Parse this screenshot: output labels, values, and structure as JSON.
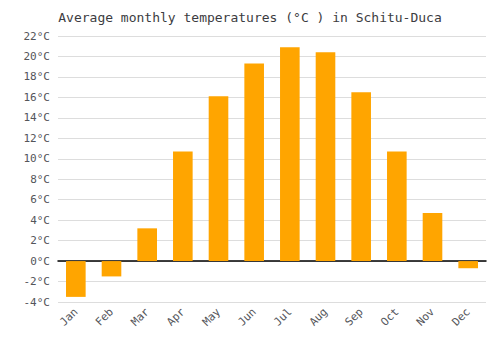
{
  "chart_data": {
    "type": "bar",
    "title": "Average monthly temperatures (°C ) in Schitu-Duca",
    "categories": [
      "Jan",
      "Feb",
      "Mar",
      "Apr",
      "May",
      "Jun",
      "Jul",
      "Aug",
      "Sep",
      "Oct",
      "Nov",
      "Dec"
    ],
    "values": [
      -3.5,
      -1.5,
      3.2,
      10.7,
      16.1,
      19.3,
      20.9,
      20.4,
      16.5,
      10.7,
      4.7,
      -0.7
    ],
    "color": "#FFA500",
    "ylim": [
      -4,
      22
    ],
    "yticks": [
      {
        "value": -4,
        "label": "-4°C"
      },
      {
        "value": -2,
        "label": "-2°C"
      },
      {
        "value": 0,
        "label": "0°C"
      },
      {
        "value": 2,
        "label": "2°C"
      },
      {
        "value": 4,
        "label": "4°C"
      },
      {
        "value": 6,
        "label": "6°C"
      },
      {
        "value": 8,
        "label": "8°C"
      },
      {
        "value": 10,
        "label": "10°C"
      },
      {
        "value": 12,
        "label": "12°C"
      },
      {
        "value": 14,
        "label": "14°C"
      },
      {
        "value": 16,
        "label": "16°C"
      },
      {
        "value": 18,
        "label": "18°C"
      },
      {
        "value": 20,
        "label": "20°C"
      },
      {
        "value": 22,
        "label": "22°C"
      }
    ],
    "grid": true
  }
}
